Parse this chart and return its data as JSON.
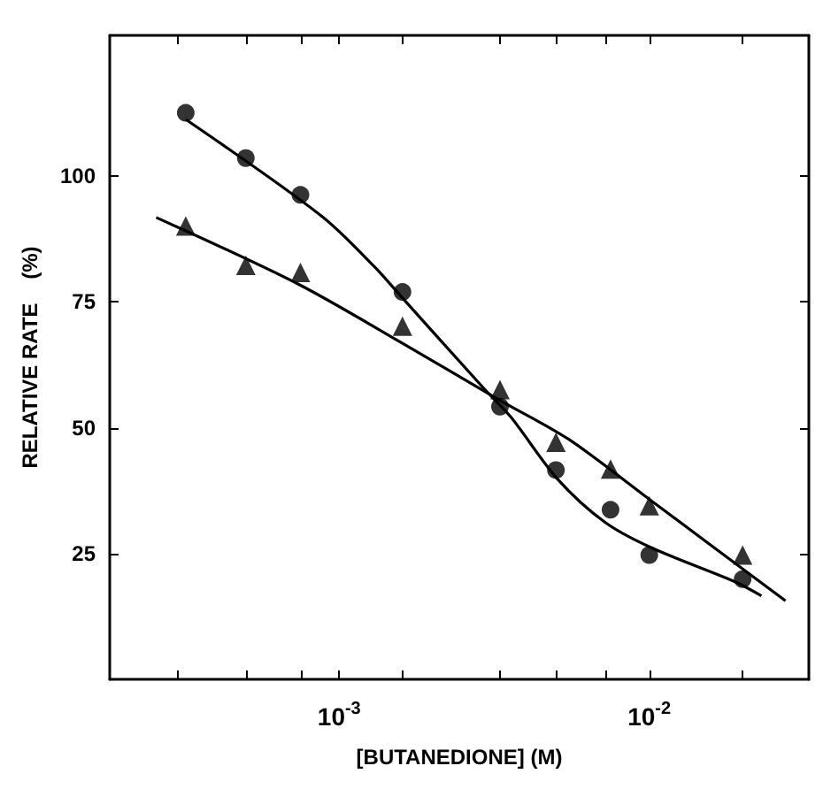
{
  "chart_data": {
    "type": "scatter",
    "xlabel": "[BUTANEDIONE] (M)",
    "ylabel": "RELATIVE RATE    (%)",
    "log": "x",
    "grid": false,
    "xlim": [
      0.000182,
      0.0327
    ],
    "ylim": [
      0,
      128
    ],
    "xticks": [
      {
        "value": 0.0003,
        "label": null
      },
      {
        "value": 0.0005,
        "label": null
      },
      {
        "value": 0.00075,
        "label": null
      },
      {
        "value": 0.001,
        "label": "10$^{-3}$"
      },
      {
        "value": 0.0016,
        "label": null
      },
      {
        "value": 0.0033,
        "label": null
      },
      {
        "value": 0.005,
        "label": null
      },
      {
        "value": 0.0072,
        "label": null
      },
      {
        "value": 0.01,
        "label": "10$^{-2}$"
      },
      {
        "value": 0.02,
        "label": null
      }
    ],
    "yticks": [
      25,
      50,
      75,
      100
    ],
    "series": [
      {
        "marker": "circle",
        "color": "#000000",
        "x": [
          0.00032,
          0.0005,
          0.00075,
          0.0016,
          0.0033,
          0.005,
          0.0075,
          0.01,
          0.02
        ],
        "values": [
          112.6,
          103.6,
          96.3,
          77,
          54.2,
          41.6,
          33.7,
          24.7,
          19.9
        ]
      },
      {
        "marker": "triangle",
        "color": "#000000",
        "x": [
          0.00032,
          0.0005,
          0.00075,
          0.0016,
          0.0033,
          0.005,
          0.0075,
          0.01,
          0.02
        ],
        "values": [
          90.1,
          82.3,
          80.9,
          70.2,
          57.6,
          47.1,
          41.8,
          34.5,
          24.7
        ]
      },
      {
        "type": "line",
        "marker": "none",
        "line_style": "solid",
        "color": "#000000",
        "x": [
          0.00032,
          0.000877,
          0.0013,
          0.0016,
          0.00293,
          0.00357,
          0.00506,
          0.0072,
          0.0102,
          0.0189,
          0.023
        ],
        "values": [
          111.3,
          92.1,
          82,
          75.8,
          57.8,
          52.2,
          39.8,
          31.2,
          26.1,
          19.4,
          16.6
        ]
      },
      {
        "type": "line",
        "marker": "none",
        "line_style": "solid",
        "color": "#000000",
        "x": [
          0.000257,
          0.000736,
          0.0016,
          0.00327,
          0.0055,
          0.0102,
          0.0275
        ],
        "values": [
          91.8,
          78.6,
          66.8,
          55.6,
          47.7,
          35.4,
          15.6
        ]
      }
    ]
  }
}
